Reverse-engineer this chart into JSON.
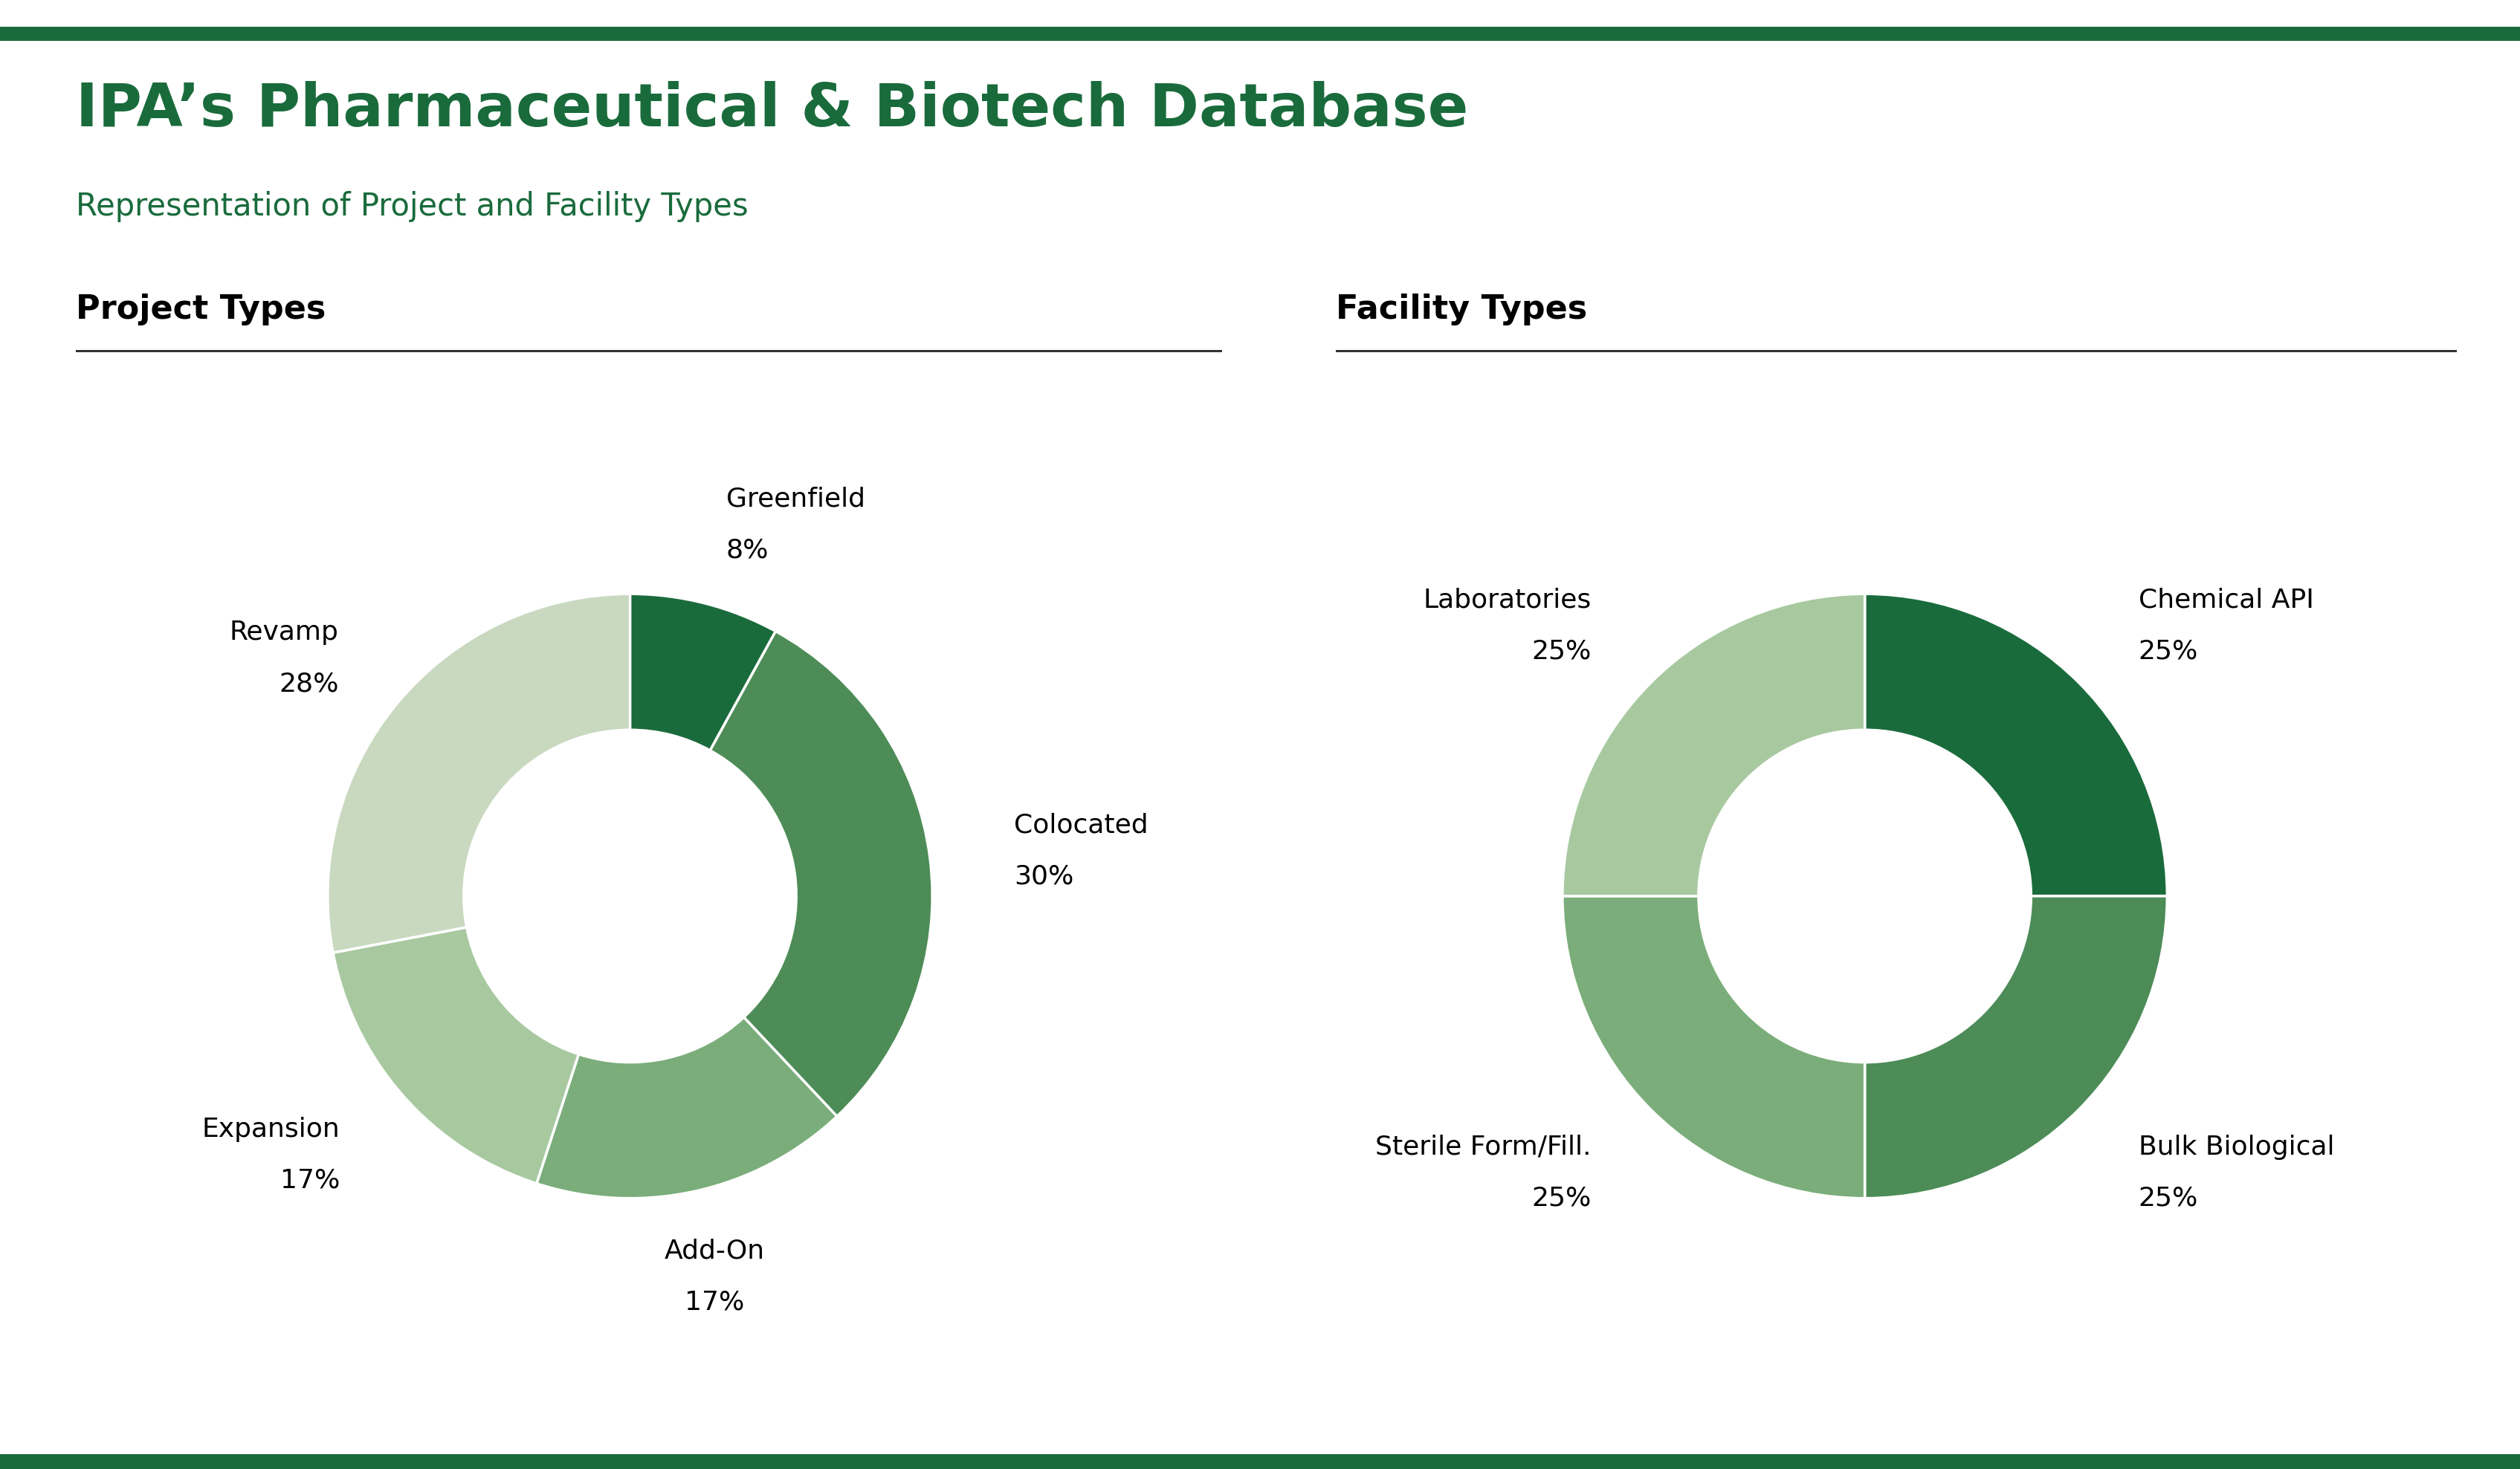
{
  "title": "IPA’s Pharmaceutical & Biotech Database",
  "subtitle": "Representation of Project and Facility Types",
  "title_color": "#1a6b3c",
  "subtitle_color": "#1a6b3c",
  "title_fontsize": 58,
  "subtitle_fontsize": 30,
  "background_color": "#ffffff",
  "project_types_title": "Project Types",
  "facility_types_title": "Facility Types",
  "section_title_fontsize": 32,
  "project_labels": [
    "Greenfield",
    "Colocated",
    "Add-On",
    "Expansion",
    "Revamp"
  ],
  "project_values": [
    8,
    30,
    17,
    17,
    28
  ],
  "project_colors": [
    "#1a6b3c",
    "#4d8c57",
    "#7aad7a",
    "#a8c9a0",
    "#c8d9c0"
  ],
  "project_label_format": [
    {
      "label": "Greenfield",
      "pct": "8%",
      "ha": "left",
      "va": "bottom"
    },
    {
      "label": "Colocated",
      "pct": "30%",
      "ha": "left",
      "va": "center"
    },
    {
      "label": "Add-On",
      "pct": "17%",
      "ha": "center",
      "va": "top"
    },
    {
      "label": "Expansion",
      "pct": "17%",
      "ha": "right",
      "va": "center"
    },
    {
      "label": "Revamp",
      "pct": "28%",
      "ha": "right",
      "va": "center"
    }
  ],
  "facility_labels": [
    "Chemical API",
    "Bulk Biological",
    "Sterile Form/Fill.",
    "Laboratories"
  ],
  "facility_values": [
    25,
    25,
    25,
    25
  ],
  "facility_colors": [
    "#1a6b3c",
    "#4d8c57",
    "#7aad7a",
    "#a8c9a0"
  ],
  "facility_label_format": [
    {
      "label": "Chemical API",
      "pct": "25%",
      "ha": "left",
      "va": "center"
    },
    {
      "label": "Bulk Biological",
      "pct": "25%",
      "ha": "left",
      "va": "center"
    },
    {
      "label": "Sterile Form/Fill.",
      "pct": "25%",
      "ha": "right",
      "va": "center"
    },
    {
      "label": "Laboratories",
      "pct": "25%",
      "ha": "right",
      "va": "center"
    }
  ],
  "label_fontsize": 26,
  "pct_fontsize": 26,
  "donut_width": 0.45,
  "top_line_color": "#1a6b3c",
  "divider_color": "#333333",
  "proj_label_offsets": [
    1.28,
    1.28,
    1.28,
    1.28,
    1.25
  ],
  "fac_label_offsets": [
    1.28,
    1.28,
    1.28,
    1.28
  ]
}
